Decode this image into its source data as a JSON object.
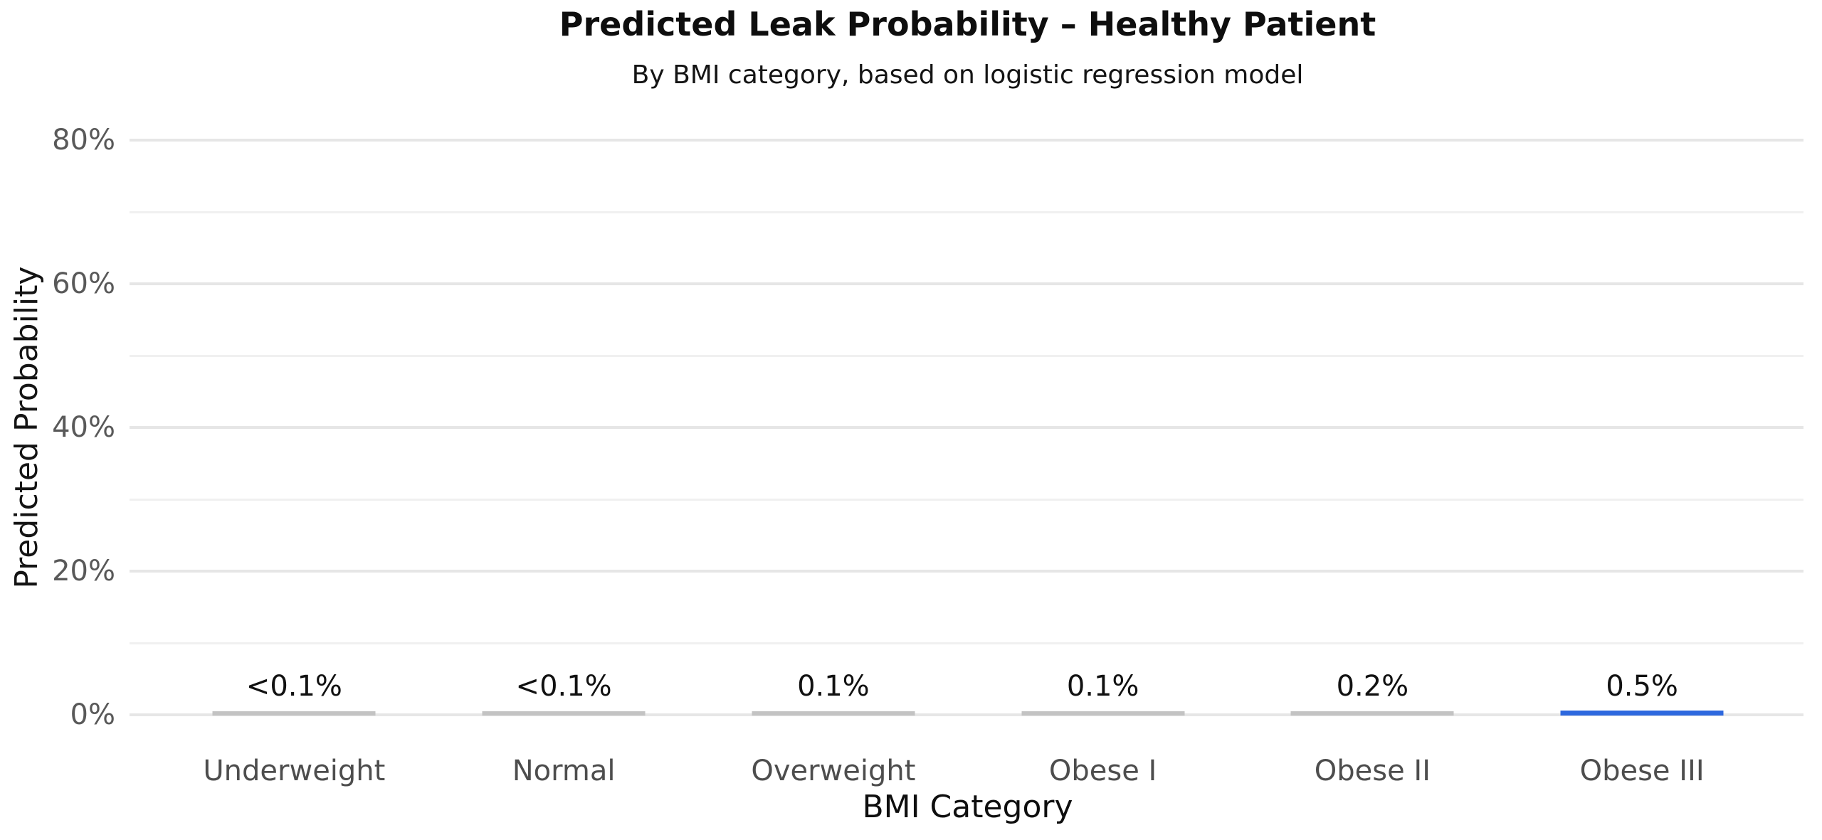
{
  "chart": {
    "title": "Predicted Leak Probability – Healthy Patient",
    "subtitle": "By BMI category, based on logistic regression model"
  },
  "axes": {
    "x_title": "BMI Category",
    "y_title": "Predicted Probability"
  },
  "chart_data": {
    "type": "bar",
    "title": "Predicted Leak Probability – Healthy Patient",
    "subtitle": "By BMI category, based on logistic regression model",
    "xlabel": "BMI Category",
    "ylabel": "Predicted Probability",
    "categories": [
      "Underweight",
      "Normal",
      "Overweight",
      "Obese I",
      "Obese II",
      "Obese III"
    ],
    "values_pct": [
      0.05,
      0.05,
      0.1,
      0.1,
      0.2,
      0.5
    ],
    "value_labels": [
      "<0.1%",
      "<0.1%",
      "0.1%",
      "0.1%",
      "0.2%",
      "0.5%"
    ],
    "ylim": [
      0,
      80
    ],
    "ytick_pcts": [
      0,
      20,
      40,
      60,
      80
    ],
    "ytick_labels": [
      "0%",
      "20%",
      "40%",
      "60%",
      "80%"
    ],
    "minor_grid_pcts": [
      10,
      30,
      50,
      70
    ],
    "grid": "horizontal",
    "legend_position": "none",
    "highlight_index": 5
  },
  "colors": {
    "bar_gray": "#c3c3c3",
    "bar_highlight_blue": "#2d68de",
    "grid_major": "#e6e6e6",
    "grid_minor": "#f0f0f0",
    "tick_text": "#595959",
    "category_text": "#4d4d4d",
    "label_text": "#111111",
    "title_text": "#0e0e0e",
    "background": "#ffffff"
  }
}
